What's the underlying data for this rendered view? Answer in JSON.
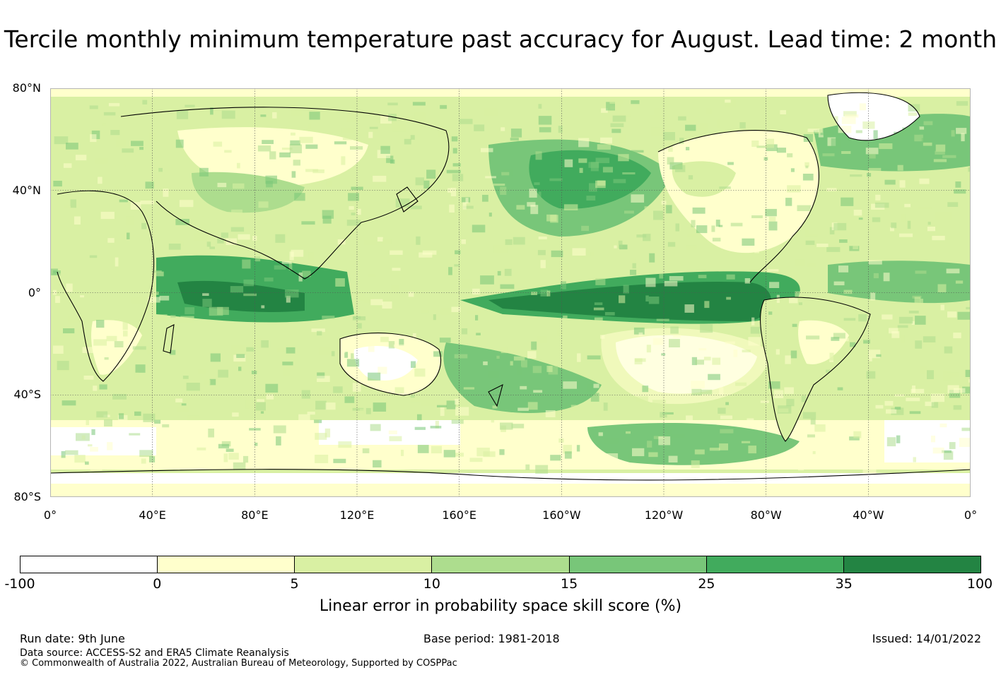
{
  "title": "Tercile monthly minimum temperature past accuracy for August. Lead time: 2 month",
  "map": {
    "lat_labels": [
      "80°N",
      "40°N",
      "0°",
      "40°S",
      "80°S"
    ],
    "lon_labels": [
      "0°",
      "40°E",
      "80°E",
      "120°E",
      "160°E",
      "160°W",
      "120°W",
      "80°W",
      "40°W",
      "0°"
    ],
    "projection": "equirectangular, Pacific-centred (0° to 360°)",
    "lon_range": [
      0,
      360
    ],
    "lat_range": [
      -80,
      80
    ],
    "gridlines": true,
    "coastlines": true
  },
  "colorbar": {
    "label": "Linear error in probability space skill score (%)",
    "ticks": [
      "-100",
      "0",
      "5",
      "10",
      "15",
      "25",
      "35",
      "100"
    ],
    "bins": [
      {
        "from": -100,
        "to": 0,
        "color": "#ffffff"
      },
      {
        "from": 0,
        "to": 5,
        "color": "#ffffcc"
      },
      {
        "from": 5,
        "to": 10,
        "color": "#d9f0a3"
      },
      {
        "from": 10,
        "to": 15,
        "color": "#addd8e"
      },
      {
        "from": 15,
        "to": 25,
        "color": "#78c679"
      },
      {
        "from": 25,
        "to": 35,
        "color": "#41ab5d"
      },
      {
        "from": 35,
        "to": 100,
        "color": "#238443"
      }
    ]
  },
  "footer": {
    "run_date": "Run date: 9th June",
    "base_period": "Base period: 1981-2018",
    "issued": "Issued: 14/01/2022",
    "data_source": "Data source: ACCESS-S2 and ERA5 Climate Reanalysis",
    "copyright": "© Commonwealth of Australia 2022, Australian Bureau of Meteorology, Supported by COSPPac"
  }
}
